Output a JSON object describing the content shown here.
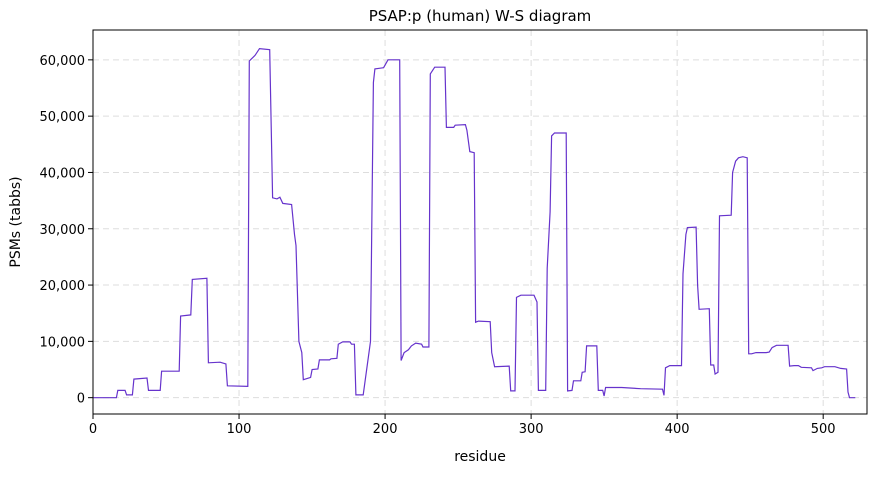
{
  "chart_data": {
    "type": "line",
    "title": "PSAP:p (human) W-S diagram",
    "xlabel": "residue",
    "ylabel": "PSMs (tabbs)",
    "xlim": [
      0,
      530
    ],
    "ylim": [
      -2900,
      65300
    ],
    "xticks": [
      0,
      100,
      200,
      300,
      400,
      500
    ],
    "yticks": [
      0,
      {
        "value": 10000,
        "label": "10,000"
      },
      {
        "value": 20000,
        "label": "20,000"
      },
      {
        "value": 30000,
        "label": "30,000"
      },
      {
        "value": 40000,
        "label": "40,000"
      },
      {
        "value": 50000,
        "label": "50,000"
      },
      {
        "value": 60000,
        "label": "60,000"
      }
    ],
    "grid": true,
    "series": [
      {
        "color": "#6633cc",
        "x": [
          0,
          16,
          17,
          22,
          23,
          27,
          28,
          37,
          38,
          46,
          47,
          59,
          60,
          67,
          68,
          78,
          79,
          87,
          91,
          92,
          106,
          107,
          111,
          114,
          121,
          123,
          126,
          128,
          130,
          136,
          138,
          139,
          141,
          143,
          144,
          149,
          150,
          154,
          155,
          162,
          163,
          167,
          168,
          171,
          176,
          177,
          179,
          180,
          185,
          190,
          192,
          193,
          199,
          202,
          210,
          211,
          213,
          216,
          218,
          221,
          225,
          226,
          230,
          231,
          234,
          241,
          242,
          247,
          248,
          255,
          256,
          258,
          261,
          262,
          264,
          272,
          273,
          275,
          285,
          286,
          289,
          290,
          293,
          302,
          304,
          305,
          310,
          311,
          313,
          314,
          316,
          324,
          325,
          328,
          329,
          334,
          335,
          337,
          338,
          345,
          346,
          349,
          350,
          351,
          362,
          375,
          390,
          391,
          392,
          395,
          403,
          404,
          406,
          407,
          413,
          414,
          415,
          422,
          423,
          425,
          426,
          428,
          429,
          437,
          438,
          440,
          442,
          445,
          448,
          449,
          451,
          454,
          461,
          463,
          465,
          468,
          476,
          477,
          480,
          483,
          485,
          492,
          493,
          496,
          499,
          501,
          508,
          512,
          516,
          517,
          518,
          522
        ],
        "values": [
          0,
          0,
          1300,
          1300,
          500,
          500,
          3300,
          3500,
          1300,
          1300,
          4700,
          4700,
          14500,
          14700,
          21000,
          21200,
          6200,
          6300,
          6000,
          2100,
          2000,
          59800,
          60800,
          62000,
          61800,
          35500,
          35300,
          35600,
          34500,
          34300,
          29000,
          27000,
          10000,
          8000,
          3200,
          3600,
          5000,
          5100,
          6700,
          6700,
          6900,
          7000,
          9500,
          9900,
          9900,
          9500,
          9500,
          500,
          500,
          10000,
          56000,
          58400,
          58600,
          60000,
          60000,
          6600,
          8000,
          8500,
          9200,
          9700,
          9500,
          9000,
          9000,
          57500,
          58700,
          58700,
          48000,
          48000,
          48400,
          48500,
          47500,
          43700,
          43500,
          13400,
          13600,
          13500,
          8000,
          5500,
          5600,
          1200,
          1200,
          17800,
          18200,
          18200,
          17000,
          1300,
          1300,
          23000,
          33000,
          46500,
          47000,
          47000,
          1200,
          1300,
          3000,
          3000,
          4500,
          4600,
          9200,
          9200,
          1300,
          1300,
          300,
          1800,
          1800,
          1600,
          1500,
          400,
          5300,
          5700,
          5700,
          22000,
          29000,
          30200,
          30300,
          20000,
          15700,
          15800,
          5800,
          5800,
          4200,
          4500,
          32300,
          32400,
          40000,
          42000,
          42600,
          42800,
          42600,
          7800,
          7800,
          8000,
          8000,
          8100,
          8900,
          9300,
          9300,
          5600,
          5700,
          5700,
          5400,
          5300,
          4800,
          5200,
          5300,
          5500,
          5500,
          5200,
          5100,
          1000,
          0,
          0
        ]
      }
    ]
  }
}
